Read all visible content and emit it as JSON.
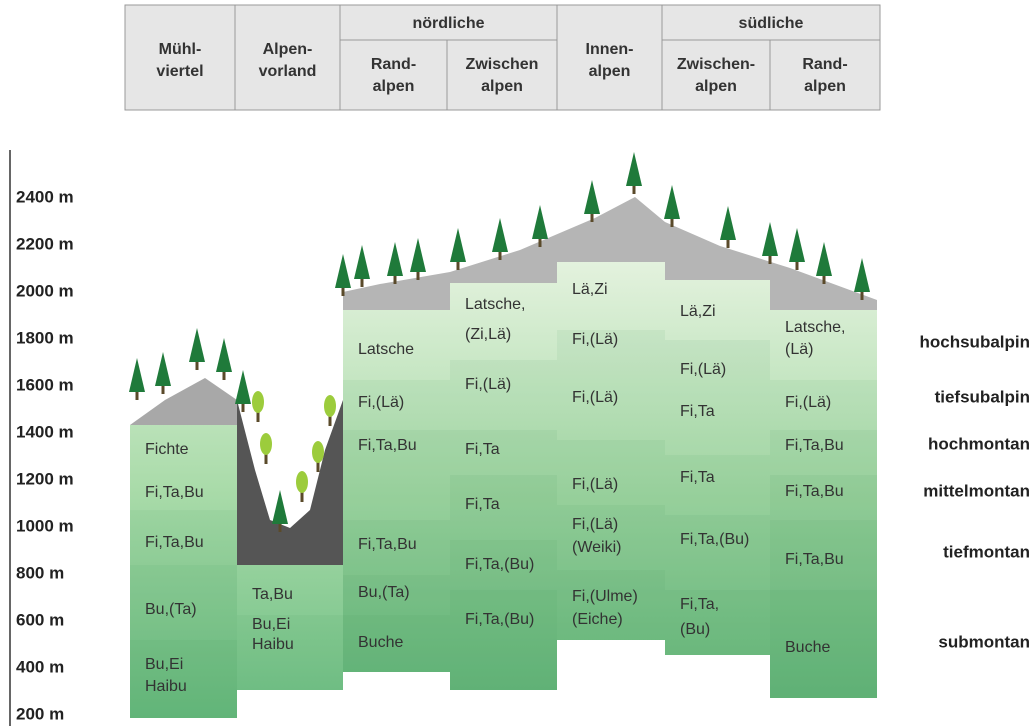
{
  "header": {
    "groups": [
      "nördliche",
      "südliche"
    ],
    "columns": [
      [
        "Mühl-",
        "viertel"
      ],
      [
        "Alpen-",
        "vorland"
      ],
      [
        "Rand-",
        "alpen"
      ],
      [
        "Zwischen",
        "alpen"
      ],
      [
        "Innen-",
        "alpen"
      ],
      [
        "Zwischen-",
        "alpen"
      ],
      [
        "Rand-",
        "alpen"
      ]
    ]
  },
  "altitudes": [
    "2400 m",
    "2200 m",
    "2000 m",
    "1800 m",
    "1600 m",
    "1400 m",
    "1200 m",
    "1000 m",
    "800 m",
    "600 m",
    "400 m",
    "200 m"
  ],
  "regions": [
    {
      "cells": [
        "Fichte",
        "Fi,Ta,Bu",
        "Fi,Ta,Bu",
        "Bu,(Ta)",
        "Bu,Ei",
        "Haibu"
      ]
    },
    {
      "cells": [
        "Ta,Bu",
        "Bu,Ei",
        "Haibu"
      ]
    },
    {
      "cells": [
        "Latsche",
        "Fi,(Lä)",
        "Fi,Ta,Bu",
        "Fi,Ta,Bu",
        "Bu,(Ta)",
        "Buche"
      ]
    },
    {
      "cells": [
        "Latsche,",
        "(Zi,Lä)",
        "Fi,(Lä)",
        "Fi,Ta",
        "Fi,Ta",
        "Fi,Ta,(Bu)",
        "Fi,Ta,(Bu)"
      ]
    },
    {
      "cells": [
        "Lä,Zi",
        "Fi,(Lä)",
        "Fi,(Lä)",
        "Fi,(Lä)",
        "Fi,(Lä)",
        "(Weiki)",
        "Fi,(Ulme)",
        "(Eiche)"
      ]
    },
    {
      "cells": [
        "Lä,Zi",
        "Fi,(Lä)",
        "Fi,Ta",
        "Fi,Ta",
        "Fi,Ta,(Bu)",
        "Fi,Ta,",
        "(Bu)"
      ]
    },
    {
      "cells": [
        "Latsche,",
        "(Lä)",
        "Fi,(Lä)",
        "Fi,Ta,Bu",
        "Fi,Ta,Bu",
        "Fi,Ta,Bu",
        "Buche"
      ]
    }
  ],
  "zones": [
    "hochsubalpin",
    "tiefsubalpin",
    "hochmontan",
    "mittelmontan",
    "tiefmontan",
    "submontan"
  ]
}
